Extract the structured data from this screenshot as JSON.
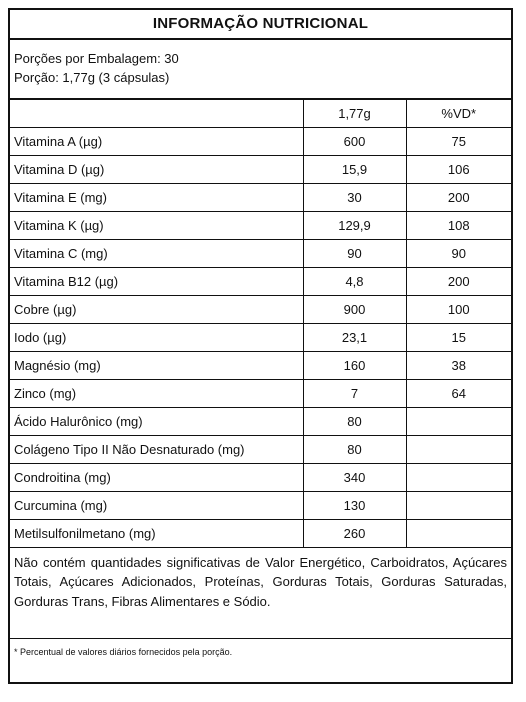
{
  "title": "INFORMAÇÃO NUTRICIONAL",
  "servings": {
    "per_package": "Porções por Embalagem: 30",
    "portion": "Porção: 1,77g (3 cápsulas)"
  },
  "columns": {
    "amount": "1,77g",
    "vd": "%VD*"
  },
  "rows": [
    {
      "name": "Vitamina A (µg)",
      "amount": "600",
      "vd": "75"
    },
    {
      "name": "Vitamina D (µg)",
      "amount": "15,9",
      "vd": "106"
    },
    {
      "name": "Vitamina E (mg)",
      "amount": "30",
      "vd": "200"
    },
    {
      "name": "Vitamina K (µg)",
      "amount": "129,9",
      "vd": "108"
    },
    {
      "name": "Vitamina C (mg)",
      "amount": "90",
      "vd": "90"
    },
    {
      "name": "Vitamina B12 (µg)",
      "amount": "4,8",
      "vd": "200"
    },
    {
      "name": "Cobre (µg)",
      "amount": "900",
      "vd": "100"
    },
    {
      "name": "Iodo (µg)",
      "amount": "23,1",
      "vd": "15"
    },
    {
      "name": "Magnésio (mg)",
      "amount": "160",
      "vd": "38"
    },
    {
      "name": "Zinco (mg)",
      "amount": "7",
      "vd": "64"
    },
    {
      "name": "Ácido Halurônico (mg)",
      "amount": "80",
      "vd": ""
    },
    {
      "name": "Colágeno Tipo II Não Desnaturado (mg)",
      "amount": "80",
      "vd": ""
    },
    {
      "name": "Condroitina (mg)",
      "amount": "340",
      "vd": ""
    },
    {
      "name": "Curcumina (mg)",
      "amount": "130",
      "vd": ""
    },
    {
      "name": "Metilsulfonilmetano (mg)",
      "amount": "260",
      "vd": ""
    }
  ],
  "note": "Não contém quantidades significativas de Valor Energético, Carboidratos, Açúcares Totais, Açúcares Adicionados, Proteínas, Gorduras Totais, Gorduras Saturadas, Gorduras Trans, Fibras Alimentares e Sódio.",
  "footnote": "* Percentual de valores diários fornecidos pela porção."
}
